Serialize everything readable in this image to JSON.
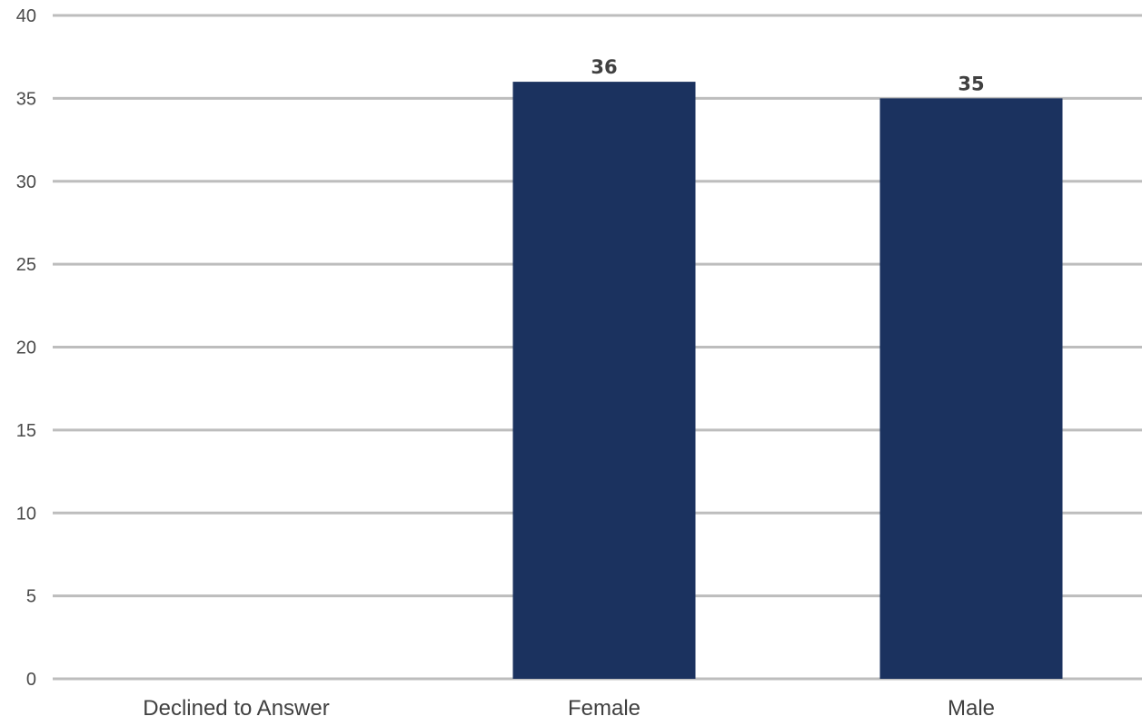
{
  "chart_data": {
    "type": "bar",
    "title": "",
    "xlabel": "",
    "ylabel": "",
    "categories": [
      "Declined to Answer",
      "Female",
      "Male"
    ],
    "values": [
      0,
      36,
      35
    ],
    "data_labels": [
      "",
      "36",
      "35"
    ],
    "ylim": [
      0,
      40
    ],
    "yticks": [
      "0",
      "5",
      "10",
      "15",
      "20",
      "25",
      "30",
      "35",
      "40"
    ],
    "grid": true,
    "legend": "none",
    "colors": {
      "bar": "#1b325f",
      "grid": "#bdbdbd"
    }
  }
}
